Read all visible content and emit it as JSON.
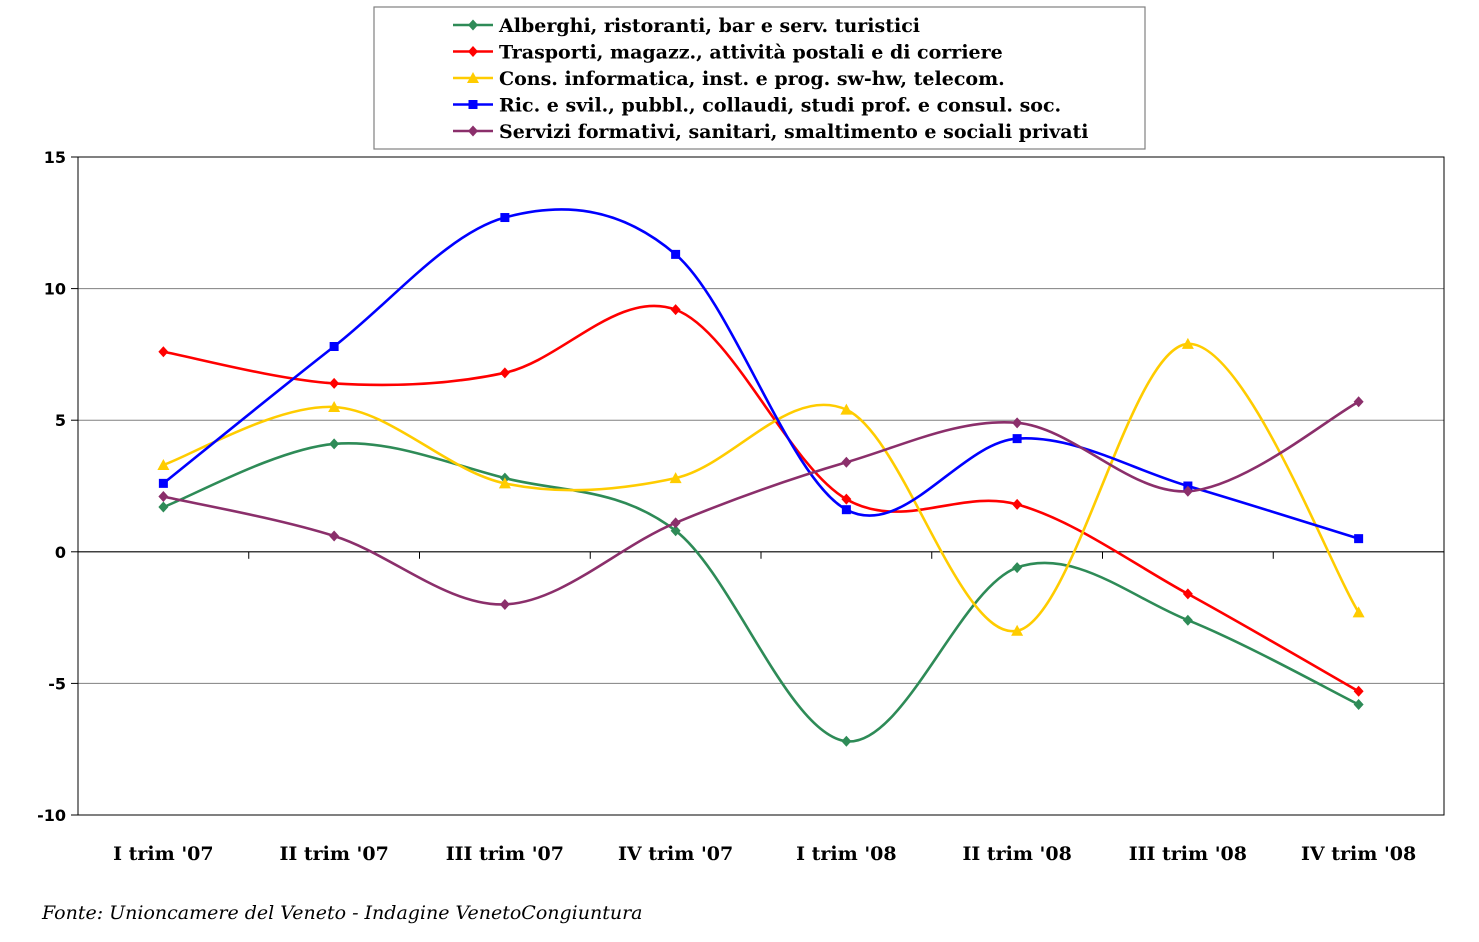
{
  "chart_data": {
    "type": "line",
    "categories": [
      "I trim '07",
      "II trim '07",
      "III trim '07",
      "IV trim '07",
      "I trim '08",
      "II trim '08",
      "III trim '08",
      "IV trim '08"
    ],
    "ylim": [
      -10,
      15
    ],
    "yticks": [
      15,
      10,
      5,
      0,
      -5,
      -10
    ],
    "grid": true,
    "smooth": true,
    "legend_position": "top",
    "series": [
      {
        "name": "Alberghi, ristoranti, bar e serv. turistici",
        "color": "#2e8b57",
        "marker": "diamond",
        "values": [
          1.7,
          4.1,
          2.8,
          0.8,
          -7.2,
          -0.6,
          -2.6,
          -5.8
        ]
      },
      {
        "name": "Trasporti, magazz., attività postali e di corriere",
        "color": "#ff0000",
        "marker": "diamond",
        "values": [
          7.6,
          6.4,
          6.8,
          9.2,
          2.0,
          1.8,
          -1.6,
          -5.3
        ]
      },
      {
        "name": "Cons. informatica, inst. e prog. sw-hw, telecom.",
        "color": "#ffcc00",
        "marker": "triangle",
        "values": [
          3.3,
          5.5,
          2.6,
          2.8,
          5.4,
          -3.0,
          7.9,
          -2.3
        ]
      },
      {
        "name": "Ric. e svil., pubbl., collaudi, studi prof. e consul. soc.",
        "color": "#0000ff",
        "marker": "square",
        "values": [
          2.6,
          7.8,
          12.7,
          11.3,
          1.6,
          4.3,
          2.5,
          0.5
        ]
      },
      {
        "name": "Servizi formativi, sanitari, smaltimento e sociali privati",
        "color": "#8b2f6b",
        "marker": "diamond",
        "values": [
          2.1,
          0.6,
          -2.0,
          1.1,
          3.4,
          4.9,
          2.3,
          5.7
        ]
      }
    ]
  },
  "source_note": "Fonte: Unioncamere del Veneto - Indagine VenetoCongiuntura"
}
